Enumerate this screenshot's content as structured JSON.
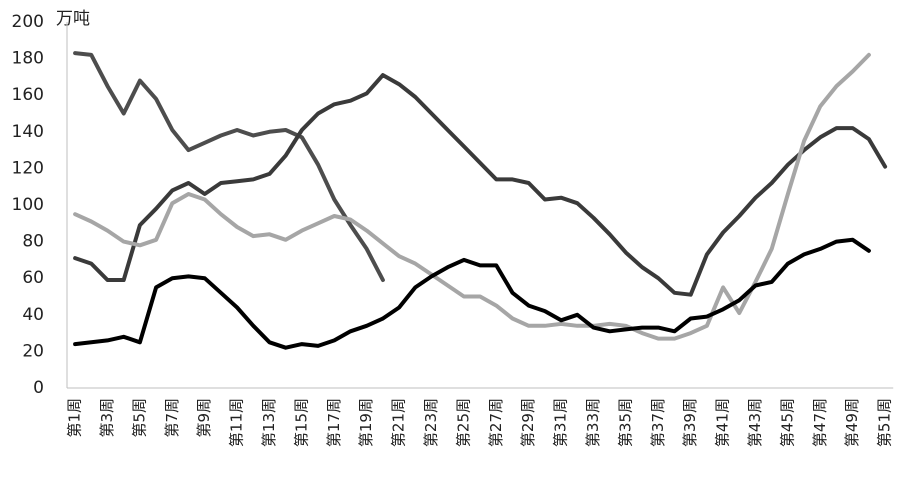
{
  "chart_data": {
    "type": "line",
    "y_unit": "万吨",
    "categories": [
      "第1周",
      null,
      "第3周",
      null,
      "第5周",
      null,
      "第7周",
      null,
      "第9周",
      null,
      "第11周",
      null,
      "第13周",
      null,
      "第15周",
      null,
      "第17周",
      null,
      "第19周",
      null,
      "第21周",
      null,
      "第23周",
      null,
      "第25周",
      null,
      "第27周",
      null,
      "第29周",
      null,
      "第31周",
      null,
      "第33周",
      null,
      "第35周",
      null,
      "第37周",
      null,
      "第39周",
      null,
      "第41周",
      null,
      "第43周",
      null,
      "第45周",
      null,
      "第47周",
      null,
      "第49周",
      null,
      "第51周"
    ],
    "series": [
      {
        "color": "#4d4d4d",
        "values": [
          183,
          182,
          165,
          150,
          168,
          158,
          141,
          130,
          134,
          138,
          141,
          138,
          140,
          141,
          137,
          122,
          103,
          89,
          76,
          59,
          null,
          null,
          null,
          null,
          null,
          null,
          null,
          null,
          null,
          null,
          null,
          null,
          null,
          null,
          null,
          null,
          null,
          null,
          null,
          null,
          null,
          null,
          null,
          null,
          null,
          null,
          null,
          null,
          null,
          null,
          null
        ]
      },
      {
        "color": "#3a3a3a",
        "values": [
          71,
          68,
          59,
          59,
          89,
          98,
          108,
          112,
          106,
          112,
          113,
          114,
          117,
          127,
          141,
          150,
          155,
          157,
          161,
          171,
          166,
          159,
          150,
          141,
          132,
          123,
          114,
          114,
          112,
          103,
          104,
          101,
          93,
          84,
          74,
          66,
          60,
          52,
          51,
          73,
          85,
          94,
          104,
          112,
          122,
          130,
          137,
          142,
          142,
          136,
          121
        ]
      },
      {
        "color": "#a6a6a6",
        "values": [
          95,
          91,
          86,
          80,
          78,
          81,
          101,
          106,
          103,
          95,
          88,
          83,
          84,
          81,
          86,
          90,
          94,
          92,
          86,
          79,
          72,
          68,
          62,
          56,
          50,
          50,
          45,
          38,
          34,
          34,
          35,
          34,
          34,
          35,
          34,
          30,
          27,
          27,
          30,
          34,
          55,
          41,
          58,
          76,
          106,
          135,
          154,
          165,
          173,
          182,
          null
        ]
      },
      {
        "color": "#000000",
        "values": [
          24,
          25,
          26,
          28,
          25,
          55,
          60,
          61,
          60,
          52,
          44,
          34,
          25,
          22,
          24,
          23,
          26,
          31,
          34,
          38,
          44,
          55,
          61,
          66,
          70,
          67,
          67,
          52,
          45,
          42,
          37,
          40,
          33,
          31,
          32,
          33,
          33,
          31,
          38,
          39,
          43,
          48,
          56,
          58,
          68,
          73,
          76,
          80,
          81,
          75,
          null
        ]
      }
    ],
    "ylim": [
      0,
      200
    ],
    "yticks": [
      0,
      20,
      40,
      60,
      80,
      100,
      120,
      140,
      160,
      180,
      200
    ],
    "grid": false
  }
}
